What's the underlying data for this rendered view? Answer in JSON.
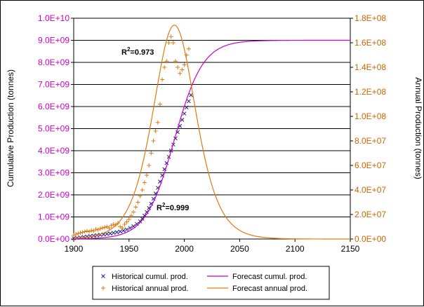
{
  "chart_data": {
    "type": "line",
    "xlabel": "",
    "ylabel_left": "Cumulative Production (tonnes)",
    "ylabel_right": "Annual Production (tonnes)",
    "xlim": [
      1900,
      2150
    ],
    "ylim_left": [
      0,
      10000000000
    ],
    "ylim_right": [
      0,
      180000000
    ],
    "x_ticks": [
      "1900",
      "1950",
      "2000",
      "2050",
      "2100",
      "2150"
    ],
    "y_left_ticks": [
      "0.0E+00",
      "1.0E+09",
      "2.0E+09",
      "3.0E+09",
      "4.0E+09",
      "5.0E+09",
      "6.0E+09",
      "7.0E+09",
      "8.0E+09",
      "9.0E+09",
      "1.0E+10"
    ],
    "y_right_ticks": [
      "0.0E+00",
      "2.0E+07",
      "4.0E+07",
      "6.0E+07",
      "8.0E+07",
      "1.0E+08",
      "1.2E+08",
      "1.4E+08",
      "1.6E+08",
      "1.8E+08"
    ],
    "grid": "horizontal",
    "legend_position": "bottom",
    "colors": {
      "cumulative": "#cc00cc",
      "annual": "#e07a10",
      "historical_cumul": "#202080",
      "historical_annual": "#e07a10",
      "left_ticks": "#cc00cc",
      "right_ticks": "#cc6600"
    },
    "series": [
      {
        "name": "Historical cumul. prod.",
        "axis": "left",
        "marker": "x",
        "x": [
          1900,
          1903,
          1906,
          1909,
          1912,
          1915,
          1918,
          1921,
          1924,
          1927,
          1930,
          1933,
          1936,
          1939,
          1942,
          1945,
          1948,
          1951,
          1954,
          1957,
          1960,
          1962,
          1964,
          1966,
          1968,
          1970,
          1972,
          1974,
          1976,
          1978,
          1980,
          1982,
          1984,
          1986,
          1988,
          1990,
          1992,
          1994,
          1996,
          1998,
          2000,
          2002,
          2004,
          2006
        ],
        "y": [
          30000000,
          50000000,
          70000000,
          90000000,
          110000000,
          130000000,
          150000000,
          170000000,
          190000000,
          210000000,
          230000000,
          250000000,
          280000000,
          310000000,
          340000000,
          380000000,
          430000000,
          500000000,
          580000000,
          680000000,
          800000000,
          920000000,
          1060000000,
          1220000000,
          1400000000,
          1600000000,
          1820000000,
          2060000000,
          2320000000,
          2600000000,
          2880000000,
          3160000000,
          3440000000,
          3720000000,
          4000000000,
          4280000000,
          4560000000,
          4840000000,
          5120000000,
          5400000000,
          5680000000,
          5960000000,
          6240000000,
          6520000000
        ]
      },
      {
        "name": "Historical annual prod.",
        "axis": "right",
        "marker": "+",
        "x": [
          1900,
          1902,
          1904,
          1906,
          1908,
          1910,
          1912,
          1914,
          1916,
          1918,
          1920,
          1922,
          1924,
          1926,
          1928,
          1930,
          1932,
          1934,
          1936,
          1938,
          1940,
          1942,
          1944,
          1946,
          1948,
          1950,
          1952,
          1954,
          1956,
          1958,
          1960,
          1962,
          1964,
          1966,
          1968,
          1970,
          1972,
          1974,
          1976,
          1978,
          1980,
          1982,
          1984,
          1986,
          1988,
          1990,
          1992,
          1994,
          1996,
          1998,
          2000,
          2002,
          2004
        ],
        "y": [
          3000000,
          4000000,
          4500000,
          5000000,
          5500000,
          6000000,
          6500000,
          6000000,
          7000000,
          6500000,
          8000000,
          7500000,
          8500000,
          9000000,
          9500000,
          10000000,
          9000000,
          11000000,
          12000000,
          11500000,
          13000000,
          10000000,
          9000000,
          12000000,
          14000000,
          16000000,
          19000000,
          22000000,
          26000000,
          30000000,
          35000000,
          40000000,
          46000000,
          52000000,
          60000000,
          70000000,
          80000000,
          88000000,
          95000000,
          110000000,
          130000000,
          140000000,
          145000000,
          160000000,
          165000000,
          160000000,
          145000000,
          140000000,
          135000000,
          138000000,
          142000000,
          150000000,
          155000000
        ]
      },
      {
        "name": "Forecast cumul. prod.",
        "axis": "left",
        "marker": "line",
        "model": {
          "type": "logistic",
          "K": 9000000000,
          "t0": 1991,
          "k": 0.0775
        },
        "x_range": [
          1900,
          2150
        ]
      },
      {
        "name": "Forecast annual prod.",
        "axis": "right",
        "marker": "line",
        "model": {
          "type": "derivative_of_logistic",
          "K": 9000000000,
          "t0": 1991,
          "k": 0.0775
        },
        "x_range": [
          1900,
          2150
        ]
      }
    ],
    "annotations": [
      {
        "text_main": "R",
        "text_sup": "2",
        "text_tail": "=0.973",
        "near": "annual peak"
      },
      {
        "text_main": "R",
        "text_sup": "2",
        "text_tail": "=0.999",
        "near": "cumulative curve"
      }
    ]
  }
}
